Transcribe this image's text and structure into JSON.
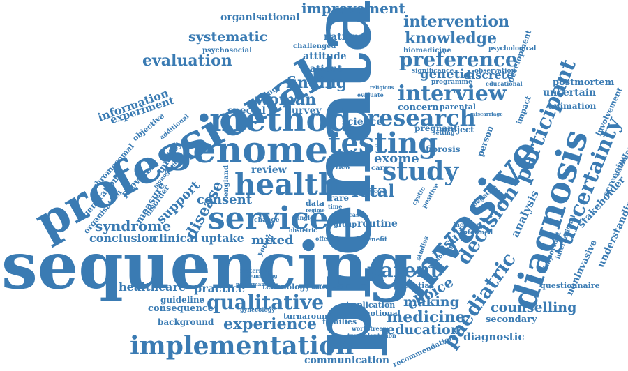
{
  "color": "#3a7bb3",
  "words": [
    "prenatal",
    "sequencing",
    "professional",
    "invasive",
    "diagnosis",
    "genome",
    "method",
    "service",
    "health",
    "implementation",
    "qualitative",
    "testing",
    "study",
    "research",
    "interview",
    "preference",
    "participant",
    "uncertainty",
    "decision",
    "paediatric",
    "parent",
    "counselling",
    "improvement",
    "intervention",
    "knowledge",
    "evaluation",
    "finding",
    "woman",
    "systematic",
    "experience",
    "medicine",
    "education",
    "making",
    "choice",
    "syndrome",
    "conclusion",
    "clinical",
    "uptake",
    "mixed",
    "consent",
    "disease",
    "support",
    "healthcare",
    "practice",
    "review",
    "fetal",
    "exome",
    "genetic",
    "discrete",
    "information",
    "experiment",
    "measure",
    "organisational",
    "national",
    "attitude",
    "patient",
    "uncertain",
    "postmortem",
    "animation",
    "result",
    "analysis",
    "stakeholder",
    "understanding",
    "noninvasive",
    "screening",
    "diagnostic",
    "communication",
    "secondary",
    "consequence",
    "guideline",
    "background",
    "turnaround",
    "science",
    "special",
    "survey",
    "concern",
    "parental",
    "pregnant",
    "project",
    "fibrosis",
    "person",
    "impact",
    "development",
    "involvement",
    "routine",
    "test",
    "rare",
    "data",
    "potential",
    "implication",
    "emotional",
    "families",
    "technology",
    "training",
    "quality",
    "provider",
    "generation",
    "organisation",
    "disorder",
    "objective",
    "chromosomal",
    "additional",
    "psychosocial",
    "challenged",
    "biomedicine",
    "psychological",
    "significance",
    "observation",
    "programme",
    "educational",
    "questionnaire",
    "important",
    "international",
    "examine",
    "workstream",
    "transplantation",
    "recommendation",
    "maternity",
    "counselling",
    "gynecology",
    "performance",
    "difference",
    "young",
    "group",
    "benefit",
    "informed",
    "negative",
    "positive",
    "offering",
    "obstetric",
    "increase",
    "miscarriage",
    "setting",
    "evaluate",
    "religious",
    "failure",
    "child",
    "care",
    "view",
    "cost",
    "england",
    "monogenic",
    "cystic",
    "change",
    "single",
    "time",
    "regime",
    "case",
    "exploring",
    "studies"
  ]
}
